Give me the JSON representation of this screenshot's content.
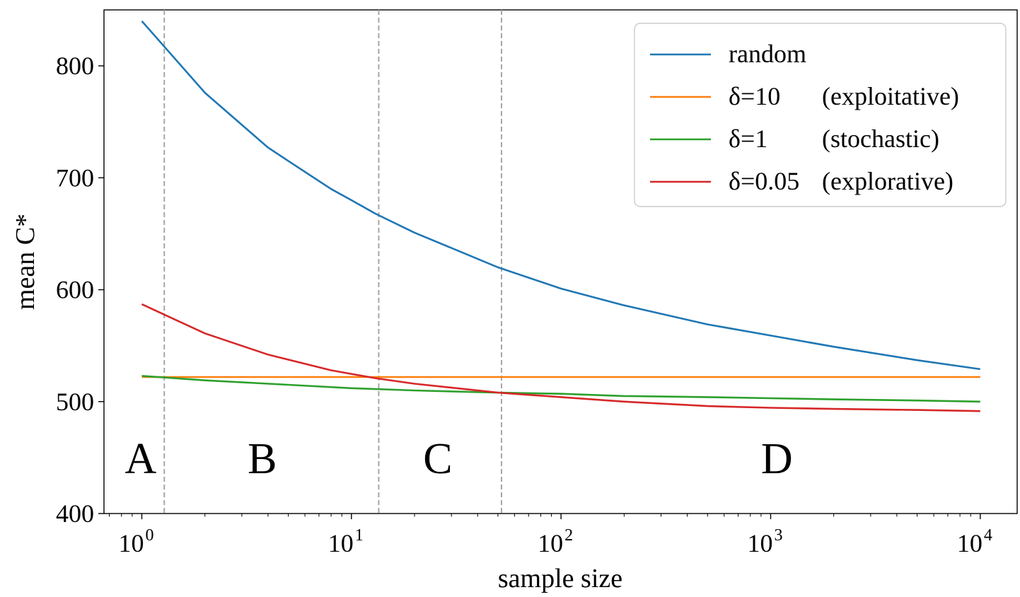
{
  "chart_data": {
    "type": "line",
    "title": "",
    "xlabel": "sample size",
    "ylabel": "mean C*",
    "xscale": "log",
    "xlim": [
      0.66,
      15000
    ],
    "ylim": [
      400,
      850
    ],
    "x_ticks": [
      {
        "value": 1,
        "base": "10",
        "exp": "0"
      },
      {
        "value": 10,
        "base": "10",
        "exp": "1"
      },
      {
        "value": 100,
        "base": "10",
        "exp": "2"
      },
      {
        "value": 1000,
        "base": "10",
        "exp": "3"
      },
      {
        "value": 10000,
        "base": "10",
        "exp": "4"
      }
    ],
    "y_ticks": [
      {
        "value": 400,
        "label": "400"
      },
      {
        "value": 500,
        "label": "500"
      },
      {
        "value": 600,
        "label": "600"
      },
      {
        "value": 700,
        "label": "700"
      },
      {
        "value": 800,
        "label": "800"
      }
    ],
    "legend_position": "top-right",
    "series": [
      {
        "name": "random",
        "note": "",
        "color": "#1f77b4",
        "x": [
          1,
          2,
          4,
          5,
          8,
          10,
          13,
          20,
          50,
          100,
          200,
          500,
          1000,
          2000,
          5000,
          10000
        ],
        "y": [
          840,
          776,
          727,
          715,
          690,
          680,
          668,
          651,
          620,
          601,
          586,
          569,
          559,
          549,
          537,
          529
        ]
      },
      {
        "name": "δ=10",
        "note": "(exploitative)",
        "color": "#ff7f0e",
        "x": [
          1,
          10000
        ],
        "y": [
          522,
          522
        ]
      },
      {
        "name": "δ=1",
        "note": "(stochastic)",
        "color": "#2ca02c",
        "x": [
          1,
          2,
          5,
          10,
          20,
          50,
          100,
          200,
          500,
          1000,
          2000,
          5000,
          10000
        ],
        "y": [
          523,
          519,
          515,
          512,
          510,
          508,
          507,
          505,
          504,
          503,
          502,
          501,
          500
        ]
      },
      {
        "name": "δ=0.05",
        "note": "(explorative)",
        "color": "#d62728",
        "x": [
          1,
          2,
          4,
          8,
          13,
          20,
          50,
          100,
          200,
          500,
          1000,
          2000,
          5000,
          10000
        ],
        "y": [
          587,
          561,
          542,
          528,
          521,
          516,
          508,
          504,
          500,
          496,
          494.5,
          493.5,
          492.5,
          491.5
        ]
      }
    ],
    "vlines": [
      1.28,
      13.5,
      52
    ],
    "regions": [
      {
        "label": "A",
        "x": 0.83
      },
      {
        "label": "B",
        "x": 3.2
      },
      {
        "label": "C",
        "x": 22
      },
      {
        "label": "D",
        "x": 900
      }
    ],
    "region_label_y": 455
  }
}
